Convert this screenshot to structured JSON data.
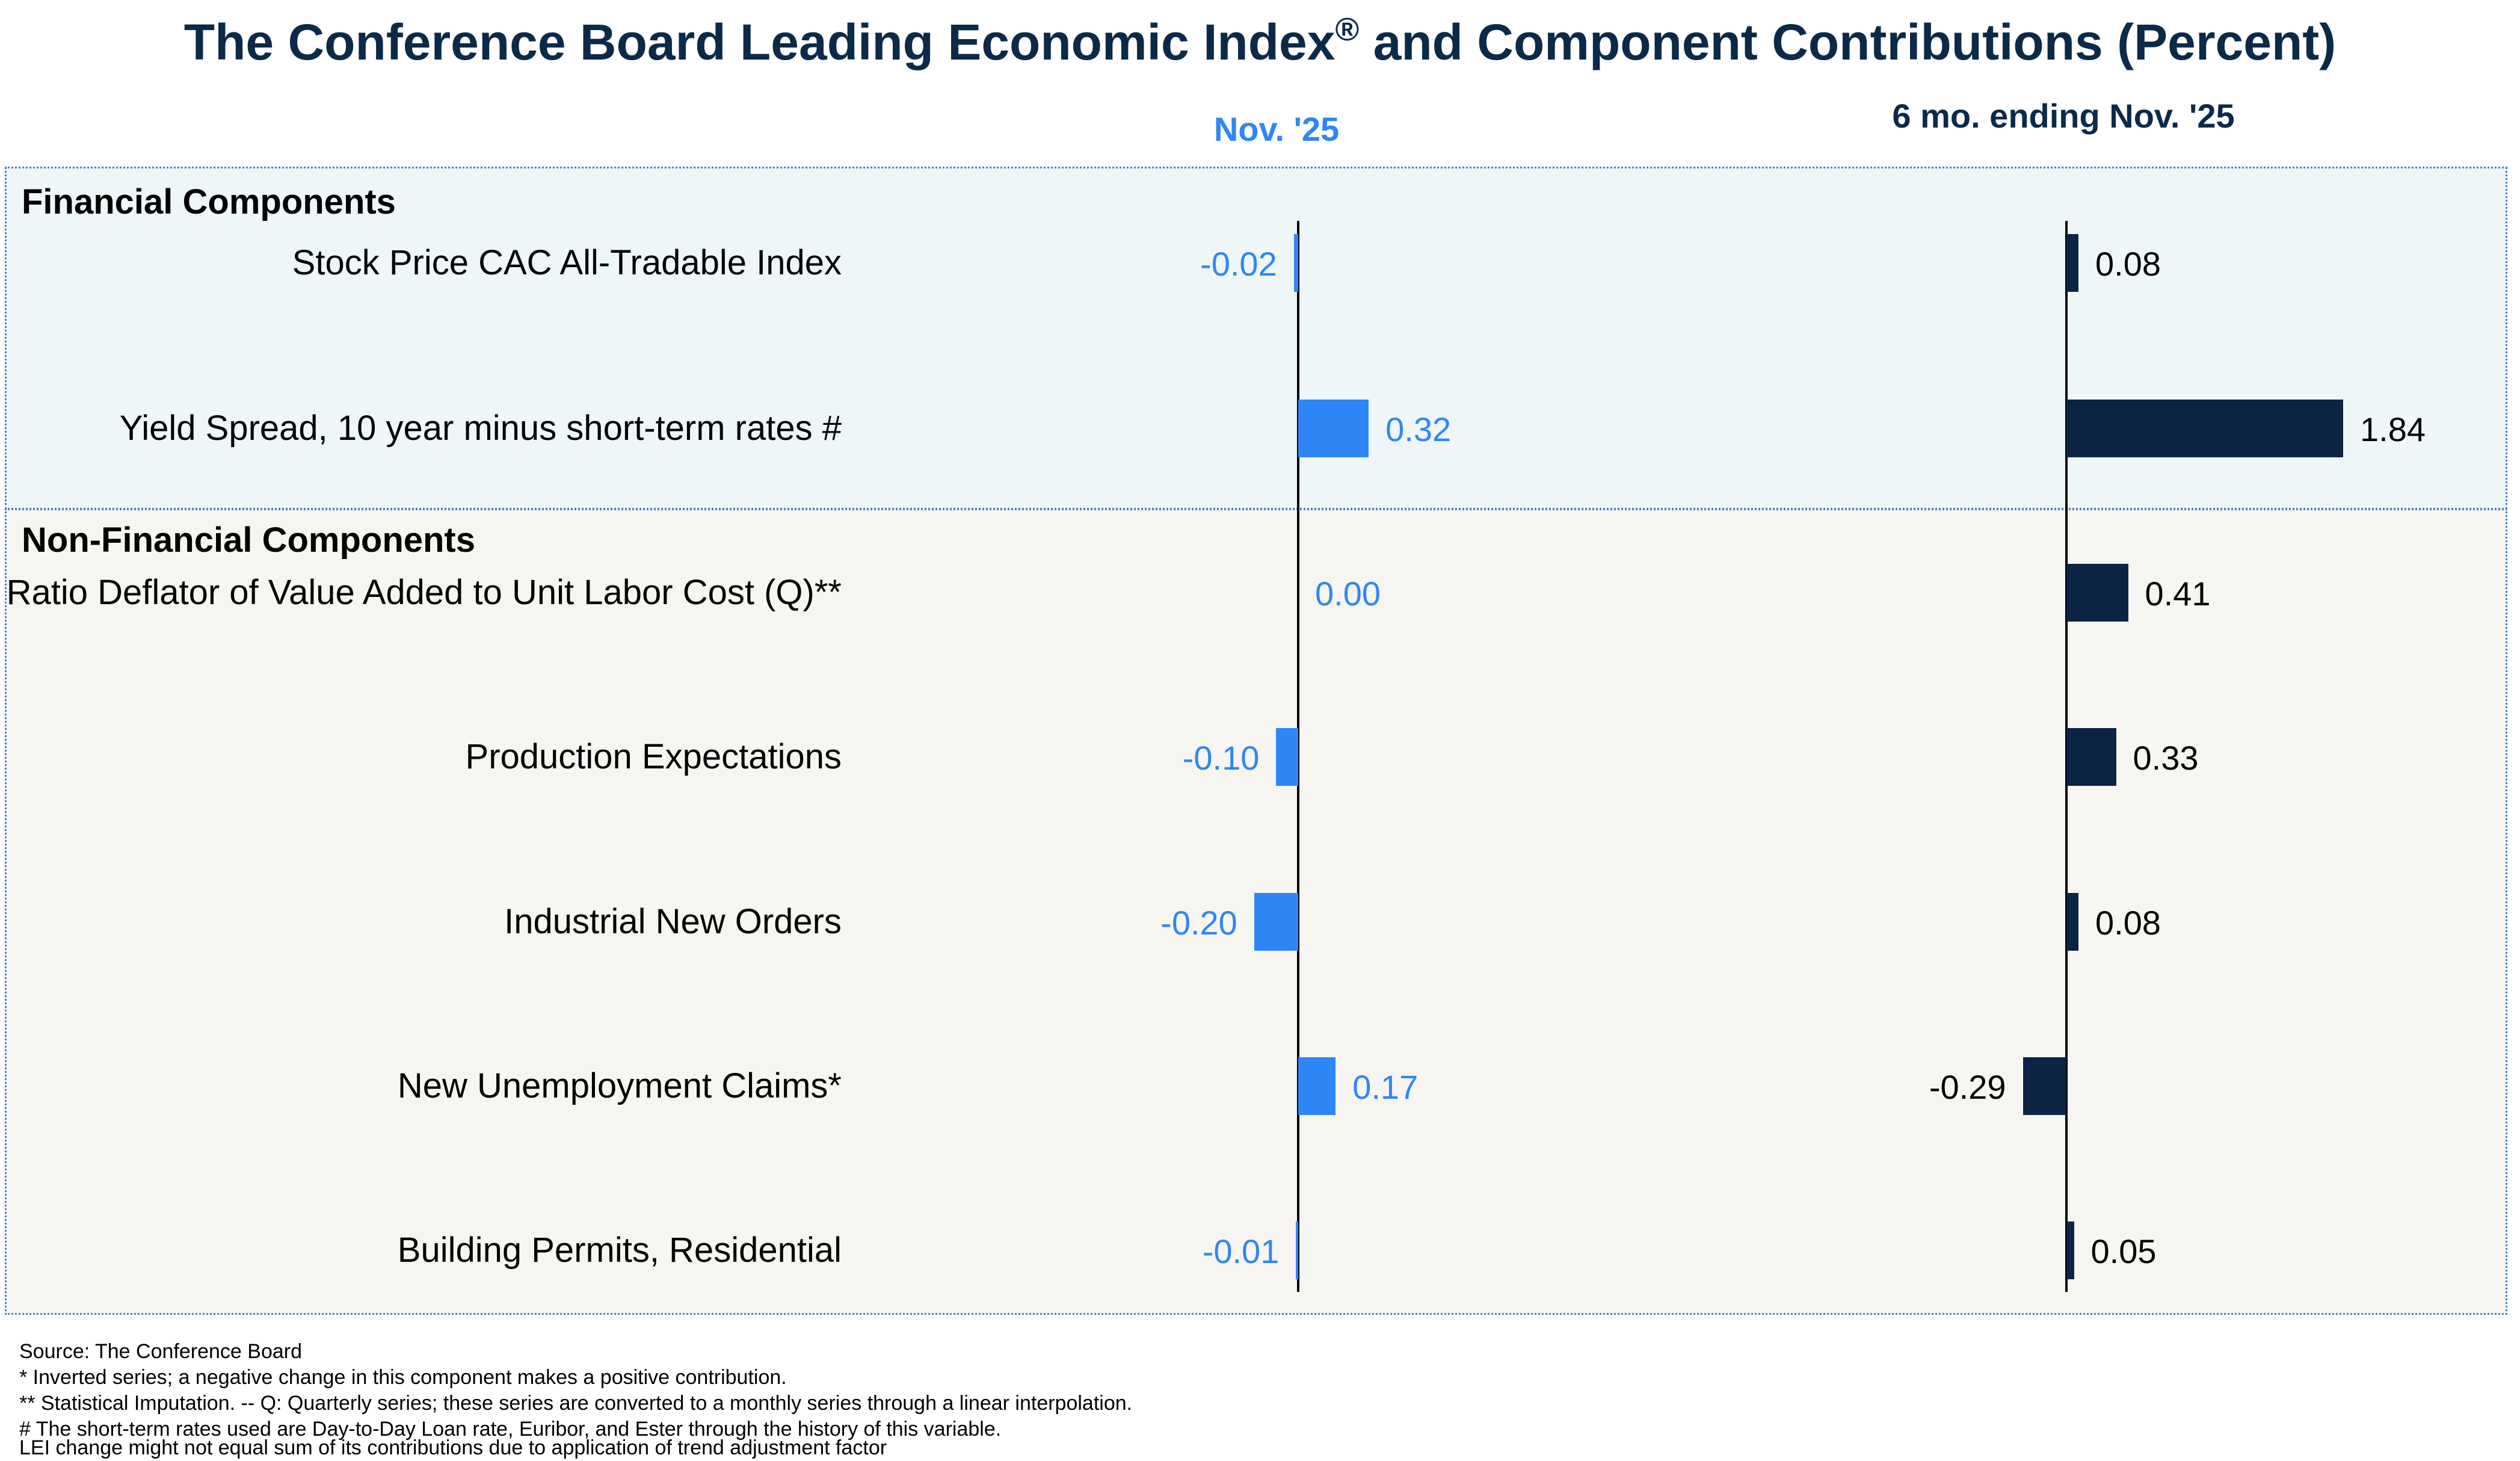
{
  "title": "The Conference Board Leading Economic Index",
  "title_mark": "®",
  "title_suffix": " and Component Contributions (Percent)",
  "colors": {
    "monthly": "#2e86f7",
    "sixmonth": "#0b2444",
    "title": "#0b2a4a",
    "financial_bg": "#eef6f8",
    "nonfinancial_bg": "#f7f5f2"
  },
  "chart_data": {
    "type": "bar",
    "orientation": "horizontal",
    "title": "The Conference Board Leading Economic Index® and Component Contributions (Percent)",
    "groups": [
      {
        "name": "Financial Components",
        "rows": [
          0,
          1
        ]
      },
      {
        "name": "Non-Financial Components",
        "rows": [
          2,
          3,
          4,
          5,
          6
        ]
      }
    ],
    "categories": [
      "Stock Price CAC All-Tradable Index",
      "Yield Spread, 10 year minus short-term rates #",
      "Ratio Deflator of Value Added to Unit Labor Cost (Q)**",
      "Production Expectations",
      "Industrial New Orders",
      "New Unemployment Claims*",
      "Building Permits, Residential"
    ],
    "series": [
      {
        "name": "Nov. '25",
        "values": [
          -0.02,
          0.32,
          0.0,
          -0.1,
          -0.2,
          0.17,
          -0.01
        ],
        "labels": [
          "-0.02",
          "0.32",
          "0.00",
          "-0.10",
          "-0.20",
          "0.17",
          "-0.01"
        ]
      },
      {
        "name": "6 mo. ending Nov. '25",
        "values": [
          0.08,
          1.84,
          0.41,
          0.33,
          0.08,
          -0.29,
          0.05
        ],
        "labels": [
          "0.08",
          "1.84",
          "0.41",
          "0.33",
          "0.08",
          "-0.29",
          "0.05"
        ]
      }
    ]
  },
  "footnotes": [
    "Source: The Conference Board",
    "*  Inverted series; a negative change in this component makes a positive contribution.",
    "**  Statistical Imputation. -- Q: Quarterly series; these series are converted to a monthly series through a linear interpolation.",
    "# The short-term rates used are Day-to-Day Loan rate, Euribor, and Ester through the history of this variable.",
    "LEI change might not equal sum of its contributions due to application of trend adjustment factor"
  ]
}
